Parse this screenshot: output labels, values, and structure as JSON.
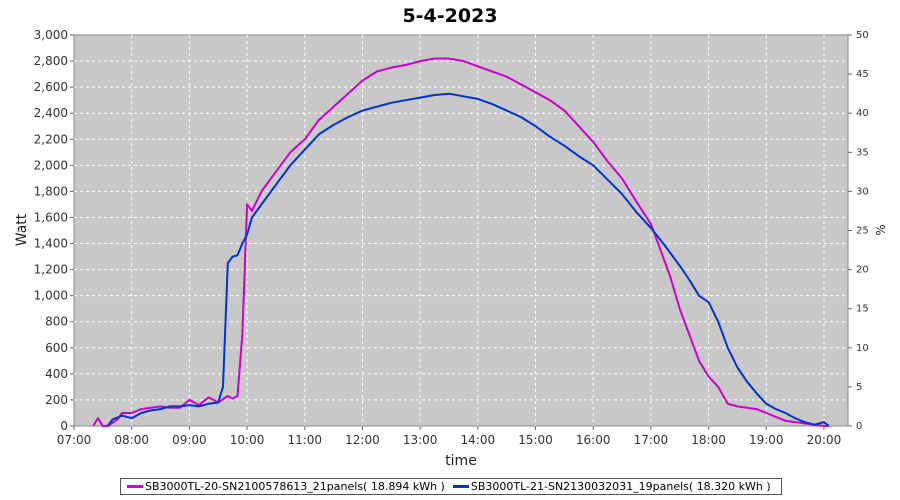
{
  "chart_data": {
    "type": "line",
    "title": "5-4-2023",
    "xlabel": "time",
    "ylabel": "Watt",
    "y2label": "%",
    "ylim": [
      0,
      3000
    ],
    "y2lim": [
      0,
      50
    ],
    "xlim": [
      "07:00",
      "20:25"
    ],
    "x_ticks": [
      "07:00",
      "08:00",
      "09:00",
      "10:00",
      "11:00",
      "12:00",
      "13:00",
      "14:00",
      "15:00",
      "16:00",
      "17:00",
      "18:00",
      "19:00",
      "20:00"
    ],
    "y_ticks": [
      "0",
      "200",
      "400",
      "600",
      "800",
      "1,000",
      "1,200",
      "1,400",
      "1,600",
      "1,800",
      "2,000",
      "2,200",
      "2,400",
      "2,600",
      "2,800",
      "3,000"
    ],
    "y2_ticks": [
      "0",
      "5",
      "10",
      "15",
      "20",
      "25",
      "30",
      "35",
      "40",
      "45",
      "50"
    ],
    "grid": true,
    "legend_position": "bottom",
    "background_color": "#c8c8c8",
    "series": [
      {
        "name": "SB3000TL-20-SN2100578613_21panels( 18.894 kWh )",
        "color": "#cc00cc",
        "x": [
          "07:20",
          "07:25",
          "07:30",
          "07:35",
          "07:45",
          "07:50",
          "08:00",
          "08:10",
          "08:20",
          "08:30",
          "08:40",
          "08:50",
          "09:00",
          "09:10",
          "09:20",
          "09:30",
          "09:40",
          "09:45",
          "09:50",
          "09:55",
          "10:00",
          "10:05",
          "10:15",
          "10:30",
          "10:45",
          "11:00",
          "11:15",
          "11:30",
          "11:45",
          "12:00",
          "12:15",
          "12:30",
          "12:45",
          "13:00",
          "13:15",
          "13:30",
          "13:45",
          "14:00",
          "14:15",
          "14:30",
          "14:45",
          "15:00",
          "15:15",
          "15:30",
          "15:45",
          "16:00",
          "16:15",
          "16:30",
          "16:45",
          "17:00",
          "17:10",
          "17:20",
          "17:30",
          "17:40",
          "17:50",
          "18:00",
          "18:10",
          "18:20",
          "18:30",
          "18:40",
          "18:50",
          "19:00",
          "19:10",
          "19:20",
          "19:30",
          "19:40",
          "19:50",
          "20:00",
          "20:05"
        ],
        "values": [
          0,
          60,
          0,
          0,
          50,
          100,
          100,
          130,
          140,
          150,
          140,
          140,
          200,
          160,
          220,
          180,
          230,
          210,
          230,
          700,
          1700,
          1650,
          1800,
          1950,
          2100,
          2200,
          2350,
          2450,
          2550,
          2650,
          2720,
          2750,
          2770,
          2800,
          2820,
          2820,
          2800,
          2760,
          2720,
          2680,
          2620,
          2560,
          2500,
          2420,
          2300,
          2180,
          2030,
          1900,
          1720,
          1550,
          1350,
          1150,
          900,
          700,
          500,
          380,
          300,
          170,
          150,
          140,
          130,
          100,
          70,
          40,
          30,
          20,
          10,
          0,
          0
        ]
      },
      {
        "name": "SB3000TL-21-SN2130032031_19panels( 18.320 kWh )",
        "color": "#0033cc",
        "x": [
          "07:35",
          "07:40",
          "07:50",
          "08:00",
          "08:10",
          "08:20",
          "08:30",
          "08:40",
          "08:50",
          "09:00",
          "09:10",
          "09:20",
          "09:30",
          "09:35",
          "09:40",
          "09:45",
          "09:50",
          "09:55",
          "10:00",
          "10:05",
          "10:15",
          "10:30",
          "10:45",
          "11:00",
          "11:15",
          "11:30",
          "11:45",
          "12:00",
          "12:15",
          "12:30",
          "12:45",
          "13:00",
          "13:15",
          "13:30",
          "13:45",
          "14:00",
          "14:15",
          "14:30",
          "14:45",
          "15:00",
          "15:15",
          "15:30",
          "15:45",
          "16:00",
          "16:15",
          "16:30",
          "16:45",
          "17:00",
          "17:15",
          "17:30",
          "17:40",
          "17:50",
          "18:00",
          "18:10",
          "18:20",
          "18:30",
          "18:40",
          "18:50",
          "19:00",
          "19:10",
          "19:20",
          "19:30",
          "19:40",
          "19:50",
          "20:00",
          "20:05"
        ],
        "values": [
          0,
          50,
          80,
          60,
          100,
          120,
          130,
          150,
          150,
          160,
          150,
          170,
          180,
          300,
          1250,
          1300,
          1310,
          1400,
          1470,
          1600,
          1700,
          1850,
          2000,
          2120,
          2240,
          2310,
          2370,
          2420,
          2450,
          2480,
          2500,
          2520,
          2540,
          2550,
          2530,
          2510,
          2470,
          2420,
          2370,
          2300,
          2220,
          2150,
          2070,
          2000,
          1890,
          1780,
          1640,
          1520,
          1380,
          1230,
          1120,
          1000,
          950,
          800,
          600,
          450,
          340,
          250,
          170,
          130,
          100,
          60,
          30,
          10,
          30,
          0
        ]
      }
    ]
  }
}
